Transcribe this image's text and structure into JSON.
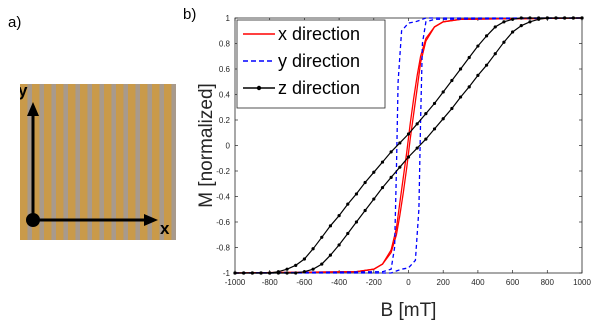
{
  "panels": {
    "a_label": "a)",
    "b_label": "b)"
  },
  "sample_image": {
    "stripe_count": 13,
    "stripe_color": "#c99a4a",
    "gap_color": "#a89a8c",
    "axes": {
      "y": "y",
      "z": "z",
      "x": "x"
    }
  },
  "chart_data": {
    "type": "line",
    "title": "",
    "xlabel": "B [mT]",
    "ylabel": "M [normalized]",
    "xlim": [
      -1000,
      1000
    ],
    "ylim": [
      -1,
      1
    ],
    "xticks": [
      "-1000",
      "-800",
      "-600",
      "-400",
      "-200",
      "0",
      "200",
      "400",
      "600",
      "800",
      "1000"
    ],
    "yticks": [
      "-1",
      "-0.8",
      "-0.6",
      "-0.4",
      "-0.2",
      "0",
      "0.2",
      "0.4",
      "0.6",
      "0.8",
      "1"
    ],
    "grid": false,
    "legend_position": "top-left",
    "series": [
      {
        "name": "x direction",
        "color": "#ff0000",
        "style": "solid",
        "branches": [
          {
            "x": [
              -1000,
              -300,
              -200,
              -150,
              -100,
              -70,
              -50,
              -30,
              -10,
              0,
              10,
              30,
              50,
              70,
              100,
              150,
              200,
              300,
              1000
            ],
            "y": [
              -1,
              -0.99,
              -0.97,
              -0.93,
              -0.84,
              -0.7,
              -0.55,
              -0.37,
              -0.17,
              -0.06,
              0.05,
              0.25,
              0.45,
              0.65,
              0.82,
              0.93,
              0.97,
              0.99,
              1
            ]
          },
          {
            "x": [
              -1000,
              -300,
              -200,
              -150,
              -100,
              -70,
              -50,
              -30,
              -10,
              0,
              10,
              30,
              50,
              70,
              100,
              150,
              200,
              300,
              1000
            ],
            "y": [
              -1,
              -0.99,
              -0.97,
              -0.93,
              -0.82,
              -0.65,
              -0.45,
              -0.25,
              -0.05,
              0.06,
              0.17,
              0.37,
              0.55,
              0.7,
              0.84,
              0.93,
              0.97,
              0.99,
              1
            ]
          }
        ]
      },
      {
        "name": "y direction",
        "color": "#0000ff",
        "style": "dashed",
        "branches": [
          {
            "x": [
              -1000,
              -100,
              -80,
              -60,
              -40,
              0,
              40,
              60,
              70,
              80,
              100,
              150,
              1000
            ],
            "y": [
              -1,
              -1,
              -0.99,
              -0.98,
              -0.97,
              -0.96,
              -0.9,
              -0.5,
              0.2,
              0.8,
              0.97,
              0.99,
              1
            ]
          },
          {
            "x": [
              -1000,
              -150,
              -100,
              -80,
              -70,
              -60,
              -40,
              0,
              40,
              60,
              80,
              100,
              1000
            ],
            "y": [
              -1,
              -0.99,
              -0.97,
              -0.8,
              -0.2,
              0.5,
              0.9,
              0.96,
              0.97,
              0.98,
              0.99,
              1,
              1
            ]
          }
        ]
      },
      {
        "name": "z direction",
        "color": "#000000",
        "style": "solid-marker",
        "branches": [
          {
            "x": [
              -1000,
              -950,
              -900,
              -850,
              -800,
              -750,
              -700,
              -650,
              -600,
              -550,
              -500,
              -450,
              -400,
              -350,
              -300,
              -250,
              -200,
              -150,
              -100,
              -50,
              0,
              50,
              100,
              150,
              200,
              250,
              300,
              350,
              400,
              450,
              500,
              550,
              600,
              650,
              700,
              750,
              800,
              850,
              900,
              950,
              1000
            ],
            "y": [
              -1,
              -1,
              -1,
              -1,
              -1,
              -0.99,
              -0.97,
              -0.94,
              -0.89,
              -0.81,
              -0.72,
              -0.63,
              -0.55,
              -0.46,
              -0.38,
              -0.29,
              -0.21,
              -0.13,
              -0.05,
              0.02,
              0.09,
              0.17,
              0.25,
              0.33,
              0.42,
              0.51,
              0.6,
              0.69,
              0.78,
              0.86,
              0.93,
              0.97,
              0.99,
              1,
              1,
              1,
              1,
              1,
              1,
              1,
              1
            ]
          },
          {
            "x": [
              -1000,
              -950,
              -900,
              -850,
              -800,
              -750,
              -700,
              -650,
              -600,
              -550,
              -500,
              -450,
              -400,
              -350,
              -300,
              -250,
              -200,
              -150,
              -100,
              -50,
              0,
              50,
              100,
              150,
              200,
              250,
              300,
              350,
              400,
              450,
              500,
              550,
              600,
              650,
              700,
              750,
              800,
              850,
              900,
              950,
              1000
            ],
            "y": [
              -1,
              -1,
              -1,
              -1,
              -1,
              -1,
              -1,
              -1,
              -0.99,
              -0.97,
              -0.93,
              -0.86,
              -0.78,
              -0.69,
              -0.6,
              -0.51,
              -0.42,
              -0.33,
              -0.25,
              -0.17,
              -0.09,
              -0.02,
              0.05,
              0.13,
              0.21,
              0.29,
              0.38,
              0.46,
              0.55,
              0.63,
              0.72,
              0.81,
              0.89,
              0.94,
              0.97,
              0.99,
              1,
              1,
              1,
              1,
              1
            ]
          }
        ]
      }
    ]
  }
}
